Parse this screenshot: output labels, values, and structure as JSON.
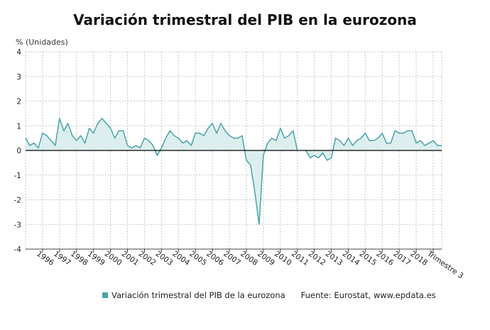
{
  "colors": {
    "line": "#4aa3a8",
    "fill": "#dcefee",
    "grid": "#c9c9c9",
    "axis": "#000000"
  },
  "chart_data": {
    "type": "area",
    "title": "Variación trimestral del PIB en la eurozona",
    "ylabel": "% (Unidades)",
    "ylim": [
      -4,
      4
    ],
    "yticks": [
      4,
      3,
      2,
      1,
      0,
      -1,
      -2,
      -3,
      -4
    ],
    "grid": true,
    "legend_placement": "bottom",
    "x_first_year": 1995,
    "xtick_labels": [
      "1996",
      "1997",
      "1998",
      "1999",
      "2000",
      "2001",
      "2002",
      "2003",
      "2004",
      "2005",
      "2006",
      "2007",
      "2008",
      "2009",
      "2010",
      "2011",
      "2012",
      "2013",
      "2014",
      "2015",
      "2016",
      "2017",
      "2018",
      "Trimestre 3"
    ],
    "series": [
      {
        "name": "Variación trimestral del PIB de la eurozona",
        "values": [
          0.5,
          0.2,
          0.3,
          0.1,
          0.7,
          0.6,
          0.4,
          0.2,
          1.3,
          0.8,
          1.1,
          0.6,
          0.4,
          0.6,
          0.3,
          0.9,
          0.7,
          1.1,
          1.3,
          1.1,
          0.9,
          0.5,
          0.8,
          0.8,
          0.2,
          0.1,
          0.2,
          0.1,
          0.5,
          0.4,
          0.2,
          -0.2,
          0.1,
          0.5,
          0.8,
          0.6,
          0.5,
          0.3,
          0.4,
          0.2,
          0.7,
          0.7,
          0.6,
          0.9,
          1.1,
          0.7,
          1.1,
          0.8,
          0.6,
          0.5,
          0.5,
          0.6,
          -0.4,
          -0.6,
          -1.7,
          -3.0,
          -0.2,
          0.3,
          0.5,
          0.4,
          0.9,
          0.5,
          0.6,
          0.8,
          0.0,
          null,
          0.0,
          -0.3,
          -0.2,
          -0.3,
          -0.1,
          -0.4,
          -0.3,
          0.5,
          0.4,
          0.2,
          0.5,
          0.2,
          0.4,
          0.5,
          0.7,
          0.4,
          0.4,
          0.5,
          0.7,
          0.3,
          0.3,
          0.8,
          0.7,
          0.7,
          0.8,
          0.8,
          0.3,
          0.4,
          0.2,
          0.3,
          0.4,
          0.2,
          0.2
        ]
      }
    ]
  },
  "legend": {
    "series_label": "Variación trimestral del PIB de la eurozona",
    "source": "Fuente: Eurostat, www.epdata.es"
  }
}
